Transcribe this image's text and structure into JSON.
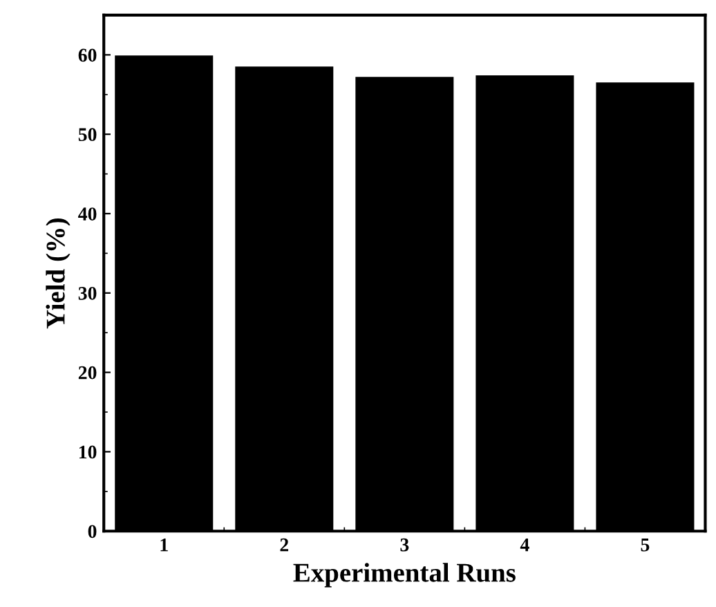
{
  "chart_data": {
    "type": "bar",
    "xlabel": "Experimental Runs",
    "ylabel": "Yield (%)",
    "categories": [
      "1",
      "2",
      "3",
      "4",
      "5"
    ],
    "values": [
      59.8,
      58.4,
      57.1,
      57.3,
      56.4
    ],
    "color": "#000000",
    "ylim": [
      0,
      65
    ],
    "yticks": [
      0,
      10,
      20,
      30,
      40,
      50,
      60
    ],
    "grid": false,
    "legend": false
  }
}
